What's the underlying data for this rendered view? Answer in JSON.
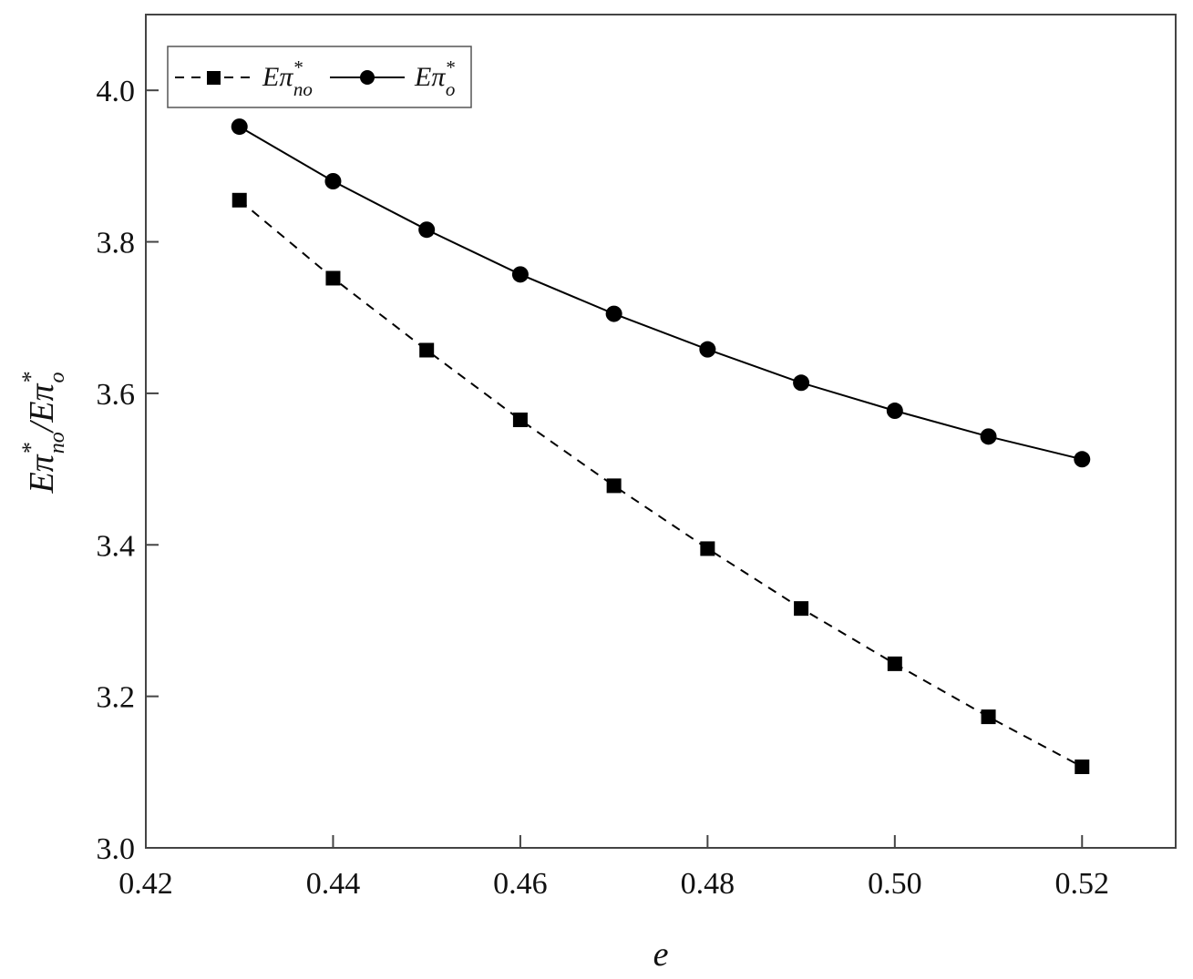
{
  "chart_data": {
    "type": "line",
    "xlabel": "e",
    "ylabel": {
      "lhs_base": "Eπ",
      "lhs_sup": "*",
      "lhs_sub": "no",
      "sep": "/",
      "rhs_base": "Eπ",
      "rhs_sup": "*",
      "rhs_sub": "o"
    },
    "xlim": [
      0.42,
      0.53
    ],
    "ylim": [
      3.0,
      4.1
    ],
    "xticks": [
      "0.42",
      "0.44",
      "0.46",
      "0.48",
      "0.50",
      "0.52"
    ],
    "xtick_values": [
      0.42,
      0.44,
      0.46,
      0.48,
      0.5,
      0.52
    ],
    "yticks": [
      "3.0",
      "3.2",
      "3.4",
      "3.6",
      "3.8",
      "4.0"
    ],
    "ytick_values": [
      3.0,
      3.2,
      3.4,
      3.6,
      3.8,
      4.0
    ],
    "grid": false,
    "legend_position": "top-left",
    "x": [
      0.43,
      0.44,
      0.45,
      0.46,
      0.47,
      0.48,
      0.49,
      0.5,
      0.51,
      0.52
    ],
    "series": [
      {
        "name": "Eπ*no",
        "label_base": "Eπ",
        "label_sup": "*",
        "label_sub": "no",
        "marker": "square",
        "line": "dashed",
        "color": "#000000",
        "values": [
          3.855,
          3.752,
          3.657,
          3.565,
          3.478,
          3.395,
          3.316,
          3.243,
          3.173,
          3.107
        ]
      },
      {
        "name": "Eπ*o",
        "label_base": "Eπ",
        "label_sup": "*",
        "label_sub": "o",
        "marker": "circle",
        "line": "solid",
        "color": "#000000",
        "values": [
          3.952,
          3.88,
          3.816,
          3.757,
          3.705,
          3.658,
          3.614,
          3.577,
          3.543,
          3.513
        ]
      }
    ]
  }
}
